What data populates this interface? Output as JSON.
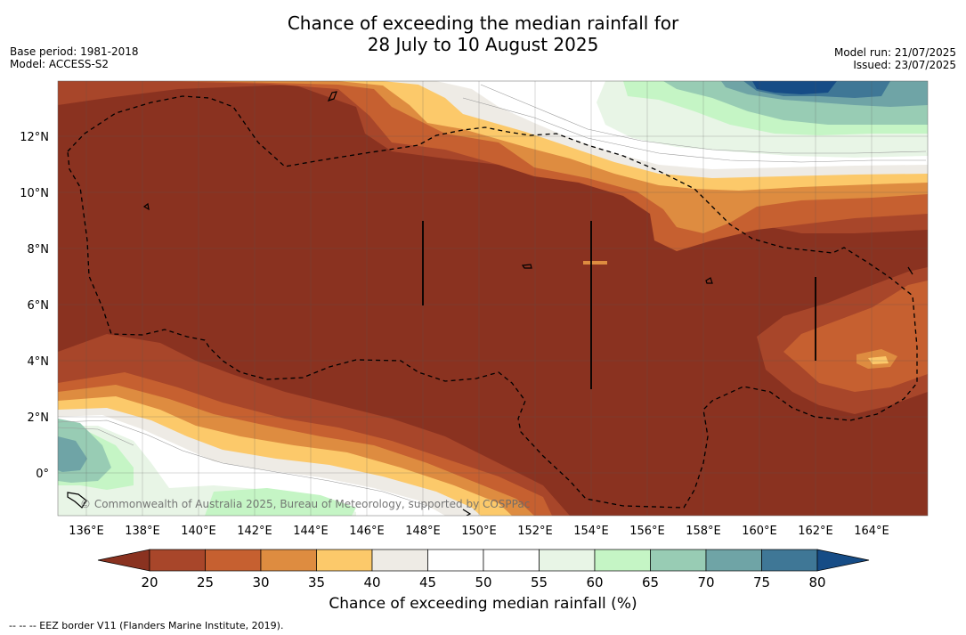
{
  "header": {
    "title_line1": "Chance of exceeding the median rainfall for",
    "title_line2": "28 July to 10 August 2025",
    "base_period": "Base period: 1981-2018",
    "model": "Model: ACCESS-S2",
    "model_run": "Model run: 21/07/2025",
    "issued": "Issued: 23/07/2025"
  },
  "map": {
    "lon_labels": [
      "136°E",
      "138°E",
      "140°E",
      "142°E",
      "144°E",
      "146°E",
      "148°E",
      "150°E",
      "152°E",
      "154°E",
      "156°E",
      "158°E",
      "160°E",
      "162°E",
      "164°E"
    ],
    "lat_labels": [
      "12°N",
      "10°N",
      "8°N",
      "6°N",
      "4°N",
      "2°N",
      "0°"
    ],
    "copyright": "© Commonwealth of Australia 2025, Bureau of Meteorology, supported by COSPPac"
  },
  "colorbar": {
    "ticks": [
      "20",
      "25",
      "30",
      "35",
      "40",
      "45",
      "50",
      "55",
      "60",
      "65",
      "70",
      "75",
      "80"
    ],
    "colors": [
      "#8a3220",
      "#a8462a",
      "#c66030",
      "#de8c40",
      "#fcc96a",
      "#eeebe5",
      "#ffffff",
      "#ffffff",
      "#e8f5e6",
      "#c5f5c5",
      "#98ccb4",
      "#6fa4a6",
      "#3f7796",
      "#164c86"
    ],
    "label": "Chance of exceeding median rainfall (%)"
  },
  "footnote": "--  --  -- EEZ border V11 (Flanders Marine Institute, 2019)."
}
